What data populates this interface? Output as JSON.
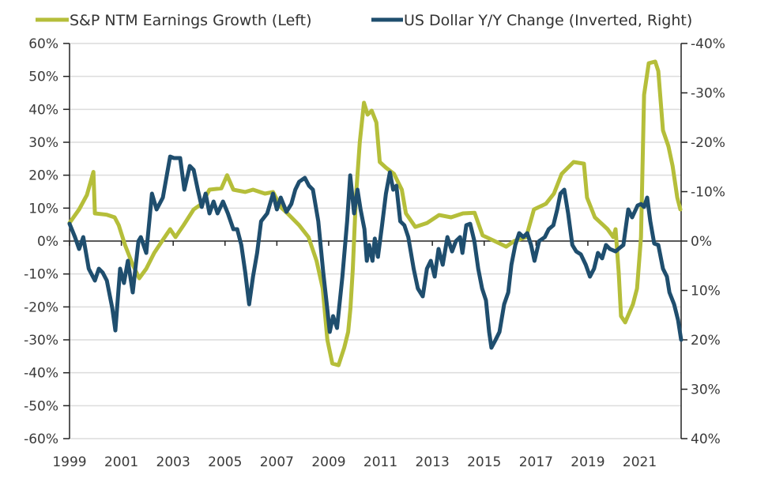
{
  "chart_data": {
    "type": "line",
    "title": "",
    "colors": {
      "earnings": "#b5be3a",
      "usd": "#1f4e6e",
      "grid": "#dcdcdc",
      "axis": "#222222"
    },
    "legend": {
      "placement": "top",
      "entries": [
        {
          "key": "earnings",
          "label": "S&P NTM Earnings Growth (Left)"
        },
        {
          "key": "usd",
          "label": "US Dollar Y/Y Change (Inverted, Right)"
        }
      ]
    },
    "x_axis": {
      "range": [
        1999,
        2022.6
      ],
      "ticks": [
        1999,
        2001,
        2003,
        2005,
        2007,
        2009,
        2011,
        2013,
        2015,
        2017,
        2019,
        2021
      ],
      "tick_labels": [
        "1999",
        "2001",
        "2003",
        "2005",
        "2007",
        "2009",
        "2011",
        "2013",
        "2015",
        "2017",
        "2019",
        "2021"
      ]
    },
    "y_left": {
      "range": [
        -60,
        60
      ],
      "ticks": [
        60,
        50,
        40,
        30,
        20,
        10,
        0,
        -10,
        -20,
        -30,
        -40,
        -50,
        -60
      ],
      "tick_labels": [
        "60%",
        "50%",
        "40%",
        "30%",
        "20%",
        "10%",
        "0%",
        "-10%",
        "-20%",
        "-30%",
        "-40%",
        "-50%",
        "-60%"
      ],
      "grid": true
    },
    "y_right": {
      "range": [
        -40,
        40
      ],
      "inverted": true,
      "ticks": [
        -40,
        -30,
        -20,
        -10,
        0,
        10,
        20,
        30,
        40
      ],
      "tick_labels": [
        "-40%",
        "-30%",
        "-20%",
        "-10%",
        "0%",
        "10%",
        "20%",
        "30%",
        "40%"
      ]
    },
    "series": [
      {
        "name": "S&P NTM Earnings Growth (Left)",
        "axis": "left",
        "x": [
          1999.0,
          1999.37,
          1999.67,
          1999.92,
          1999.98,
          2000.44,
          2000.74,
          2000.9,
          2001.14,
          2001.44,
          2001.69,
          2001.96,
          2002.27,
          2002.57,
          2002.88,
          2003.09,
          2003.4,
          2003.79,
          2004.1,
          2004.4,
          2004.86,
          2005.08,
          2005.32,
          2005.78,
          2006.08,
          2006.54,
          2006.85,
          2007.15,
          2007.46,
          2007.86,
          2008.22,
          2008.53,
          2008.77,
          2008.95,
          2009.14,
          2009.38,
          2009.6,
          2009.75,
          2009.84,
          2009.93,
          2010.05,
          2010.2,
          2010.36,
          2010.5,
          2010.66,
          2010.84,
          2010.97,
          2011.21,
          2011.52,
          2011.82,
          2011.98,
          2012.34,
          2012.8,
          2013.26,
          2013.72,
          2014.18,
          2014.63,
          2014.94,
          2015.4,
          2015.85,
          2016.16,
          2016.62,
          2016.92,
          2017.38,
          2017.69,
          2017.99,
          2018.45,
          2018.85,
          2018.97,
          2019.27,
          2019.76,
          2019.98,
          2020.07,
          2020.19,
          2020.28,
          2020.44,
          2020.74,
          2020.9,
          2021.05,
          2021.17,
          2021.35,
          2021.6,
          2021.72,
          2021.9,
          2022.11,
          2022.27,
          2022.45,
          2022.57
        ],
        "values": [
          5.5,
          9.6,
          14,
          21,
          8.4,
          8,
          7.2,
          4.8,
          -1.2,
          -7.2,
          -11.3,
          -8.4,
          -3.6,
          0,
          3.6,
          1.2,
          4.8,
          9.6,
          11.3,
          15.6,
          16,
          20,
          15.6,
          14.9,
          15.6,
          14.4,
          14.9,
          10.3,
          8,
          4.8,
          1.2,
          -6,
          -14.4,
          -30,
          -37.2,
          -37.7,
          -32.4,
          -27.6,
          -20.4,
          -8.4,
          13.2,
          30,
          42,
          38.4,
          39.6,
          36,
          24,
          22.3,
          20.4,
          15.6,
          8.4,
          4.3,
          5.5,
          7.9,
          7.2,
          8.4,
          8.6,
          1.7,
          0,
          -1.7,
          0,
          1.2,
          9.6,
          11.3,
          14.4,
          20.4,
          24,
          23.5,
          13.2,
          7.2,
          3.6,
          1.2,
          3.6,
          -9.6,
          -22.8,
          -24.7,
          -19.2,
          -14.4,
          1.2,
          44.4,
          54,
          54.5,
          51.6,
          33.6,
          28.8,
          22.8,
          13.2,
          9.6
        ]
      },
      {
        "name": "US Dollar Y/Y Change (Inverted, Right)",
        "axis": "right",
        "x": [
          1999.0,
          1999.21,
          1999.37,
          1999.53,
          1999.74,
          1999.98,
          2000.13,
          2000.28,
          2000.44,
          2000.65,
          2000.77,
          2000.95,
          2001.1,
          2001.25,
          2001.44,
          2001.66,
          2001.75,
          2001.96,
          2002.18,
          2002.36,
          2002.6,
          2002.88,
          2003.03,
          2003.27,
          2003.43,
          2003.64,
          2003.79,
          2003.95,
          2004.1,
          2004.25,
          2004.4,
          2004.56,
          2004.71,
          2004.92,
          2005.11,
          2005.32,
          2005.47,
          2005.63,
          2005.78,
          2005.93,
          2006.08,
          2006.24,
          2006.39,
          2006.63,
          2006.85,
          2007.0,
          2007.15,
          2007.37,
          2007.56,
          2007.71,
          2007.86,
          2008.08,
          2008.24,
          2008.39,
          2008.6,
          2008.79,
          2008.91,
          2009.04,
          2009.17,
          2009.32,
          2009.53,
          2009.71,
          2009.83,
          2009.98,
          2010.11,
          2010.23,
          2010.38,
          2010.47,
          2010.56,
          2010.69,
          2010.78,
          2010.9,
          2011.06,
          2011.21,
          2011.36,
          2011.49,
          2011.61,
          2011.76,
          2011.92,
          2012.07,
          2012.28,
          2012.44,
          2012.63,
          2012.79,
          2012.94,
          2013.09,
          2013.24,
          2013.4,
          2013.58,
          2013.76,
          2013.91,
          2014.07,
          2014.16,
          2014.31,
          2014.46,
          2014.62,
          2014.77,
          2014.92,
          2015.07,
          2015.19,
          2015.28,
          2015.44,
          2015.59,
          2015.77,
          2015.93,
          2016.05,
          2016.2,
          2016.35,
          2016.51,
          2016.66,
          2016.81,
          2016.94,
          2017.12,
          2017.34,
          2017.49,
          2017.67,
          2017.82,
          2017.94,
          2018.09,
          2018.24,
          2018.4,
          2018.55,
          2018.73,
          2018.92,
          2019.08,
          2019.24,
          2019.39,
          2019.55,
          2019.7,
          2019.85,
          2020.07,
          2020.25,
          2020.37,
          2020.56,
          2020.71,
          2020.92,
          2021.05,
          2021.17,
          2021.29,
          2021.41,
          2021.56,
          2021.72,
          2021.9,
          2022.05,
          2022.15,
          2022.33,
          2022.48,
          2022.6
        ],
        "values": [
          -3.5,
          -0.8,
          1.6,
          -0.8,
          5.6,
          8,
          5.6,
          6.4,
          8,
          13.6,
          18.1,
          5.6,
          8.5,
          4,
          10.4,
          0,
          -0.8,
          2.4,
          -9.6,
          -6.4,
          -8.8,
          -17.1,
          -16.8,
          -16.8,
          -10.4,
          -15.2,
          -14.4,
          -10.4,
          -6.9,
          -9.6,
          -5.6,
          -8,
          -5.6,
          -8,
          -5.6,
          -2.4,
          -2.4,
          0.8,
          6.4,
          12.8,
          7.2,
          2.4,
          -4,
          -5.6,
          -9.6,
          -6.4,
          -8.8,
          -5.9,
          -7.5,
          -10.4,
          -12,
          -12.8,
          -11.2,
          -10.4,
          -4,
          6.4,
          12,
          18.4,
          15.2,
          17.6,
          7.2,
          -4,
          -13.3,
          -5.6,
          -10.4,
          -6.4,
          -2.4,
          4,
          0.8,
          4,
          -0.5,
          3.2,
          -3.2,
          -9.6,
          -13.9,
          -10.4,
          -11.2,
          -4,
          -3.2,
          -0.8,
          5.6,
          9.6,
          11.2,
          5.6,
          4,
          7.2,
          1.6,
          4.8,
          -0.8,
          2.1,
          0,
          -0.8,
          2.4,
          -3.2,
          -3.5,
          0,
          5.6,
          9.6,
          12,
          18.4,
          21.6,
          20,
          18.4,
          12.8,
          10.4,
          4.8,
          0.8,
          -1.6,
          -0.8,
          -1.6,
          0.8,
          4,
          0,
          -0.8,
          -2.4,
          -3.2,
          -6.4,
          -9.6,
          -10.4,
          -5.6,
          0.8,
          2.1,
          2.7,
          4.8,
          7.2,
          5.6,
          2.4,
          3.5,
          0.8,
          1.6,
          2.1,
          1.3,
          0.8,
          -6.4,
          -4.8,
          -7.2,
          -7.5,
          -6.9,
          -8.8,
          -4,
          0.5,
          0.8,
          5.6,
          7.2,
          10.4,
          12.8,
          16,
          20
        ]
      }
    ]
  }
}
